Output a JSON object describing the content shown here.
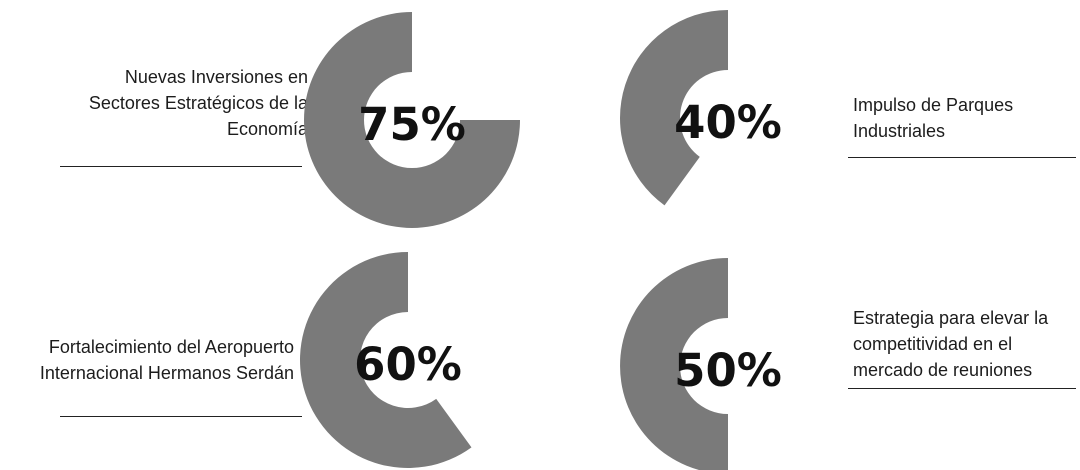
{
  "colors": {
    "ring": "#7a7a7a",
    "text": "#111111",
    "rule": "#222222"
  },
  "chart_data": [
    {
      "type": "pie",
      "style": "donut",
      "value_percent": 75,
      "display": "75%",
      "label": "Nuevas Inversiones en\nSectores Estratégicos de la\nEconomía"
    },
    {
      "type": "pie",
      "style": "donut",
      "value_percent": 40,
      "display": "40%",
      "label": "Impulso de Parques\nIndustriales"
    },
    {
      "type": "pie",
      "style": "donut",
      "value_percent": 60,
      "display": "60%",
      "label": "Fortalecimiento del Aeropuerto\nInternacional Hermanos Serdán"
    },
    {
      "type": "pie",
      "style": "donut",
      "value_percent": 50,
      "display": "50%",
      "label": "Estrategia para elevar la\ncompetitividad en el\nmercado de reuniones"
    }
  ]
}
